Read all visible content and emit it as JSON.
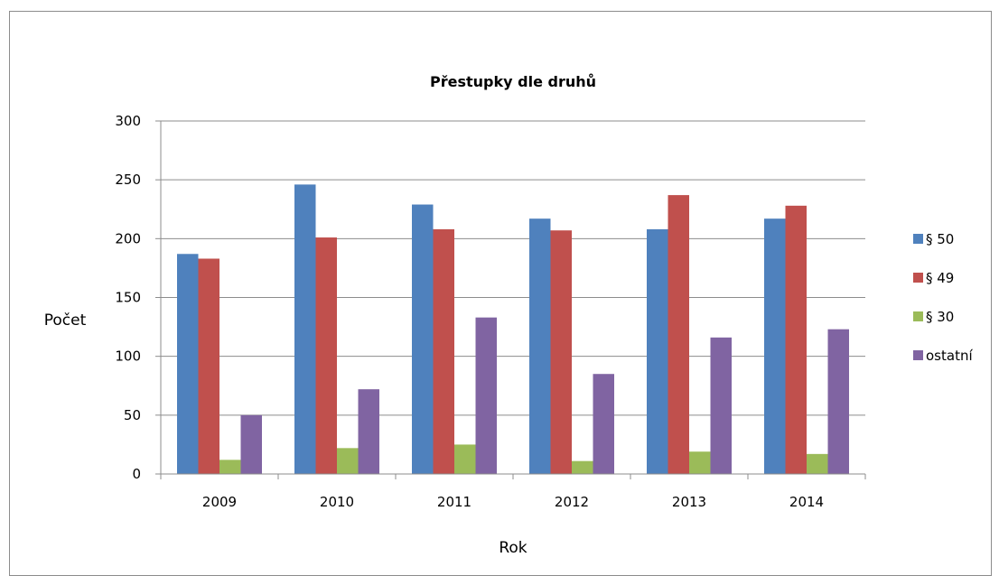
{
  "chart_data": {
    "type": "bar",
    "title": "Přestupky dle druhů",
    "xlabel": "Rok",
    "ylabel": "Počet",
    "categories": [
      "2009",
      "2010",
      "2011",
      "2012",
      "2013",
      "2014"
    ],
    "ylim": [
      0,
      300
    ],
    "yticks": [
      0,
      50,
      100,
      150,
      200,
      250,
      300
    ],
    "grid": true,
    "legend_position": "right",
    "series": [
      {
        "name": "§ 50",
        "color": "#4f81bd",
        "values": [
          187,
          246,
          229,
          217,
          208,
          217
        ]
      },
      {
        "name": "§ 49",
        "color": "#c0504d",
        "values": [
          183,
          201,
          208,
          207,
          237,
          228
        ]
      },
      {
        "name": "§ 30",
        "color": "#9bbb59",
        "values": [
          12,
          22,
          25,
          11,
          19,
          17
        ]
      },
      {
        "name": "ostatní",
        "color": "#8064a2",
        "values": [
          50,
          72,
          133,
          85,
          116,
          123
        ]
      }
    ]
  }
}
